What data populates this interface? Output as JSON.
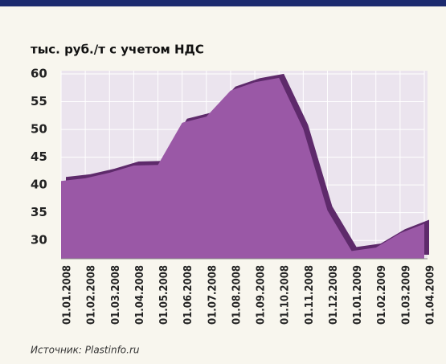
{
  "chart_data": {
    "type": "area",
    "y_label": "тыс. руб./т с учетом НДС",
    "source": "Источник: Plastinfo.ru",
    "categories": [
      "01.01.2008",
      "01.02.2008",
      "01.03.2008",
      "01.04.2008",
      "01.05.2008",
      "01.06.2008",
      "01.07.2008",
      "01.08.2008",
      "01.09.2008",
      "01.10.2008",
      "01.11.2008",
      "01.12.2008",
      "01.01.2009",
      "01.02.2009",
      "01.03.2009",
      "01.04.2009"
    ],
    "values": [
      40.7,
      41.2,
      42.2,
      43.5,
      43.6,
      51.2,
      52.3,
      57,
      58.5,
      59.3,
      50.1,
      35.4,
      28.1,
      28.7,
      31.3,
      33
    ],
    "color": "#9a58a6",
    "ylim": [
      26.7,
      60
    ],
    "yticks": [
      30,
      35,
      40,
      45,
      50,
      55,
      60
    ],
    "grid": true
  }
}
